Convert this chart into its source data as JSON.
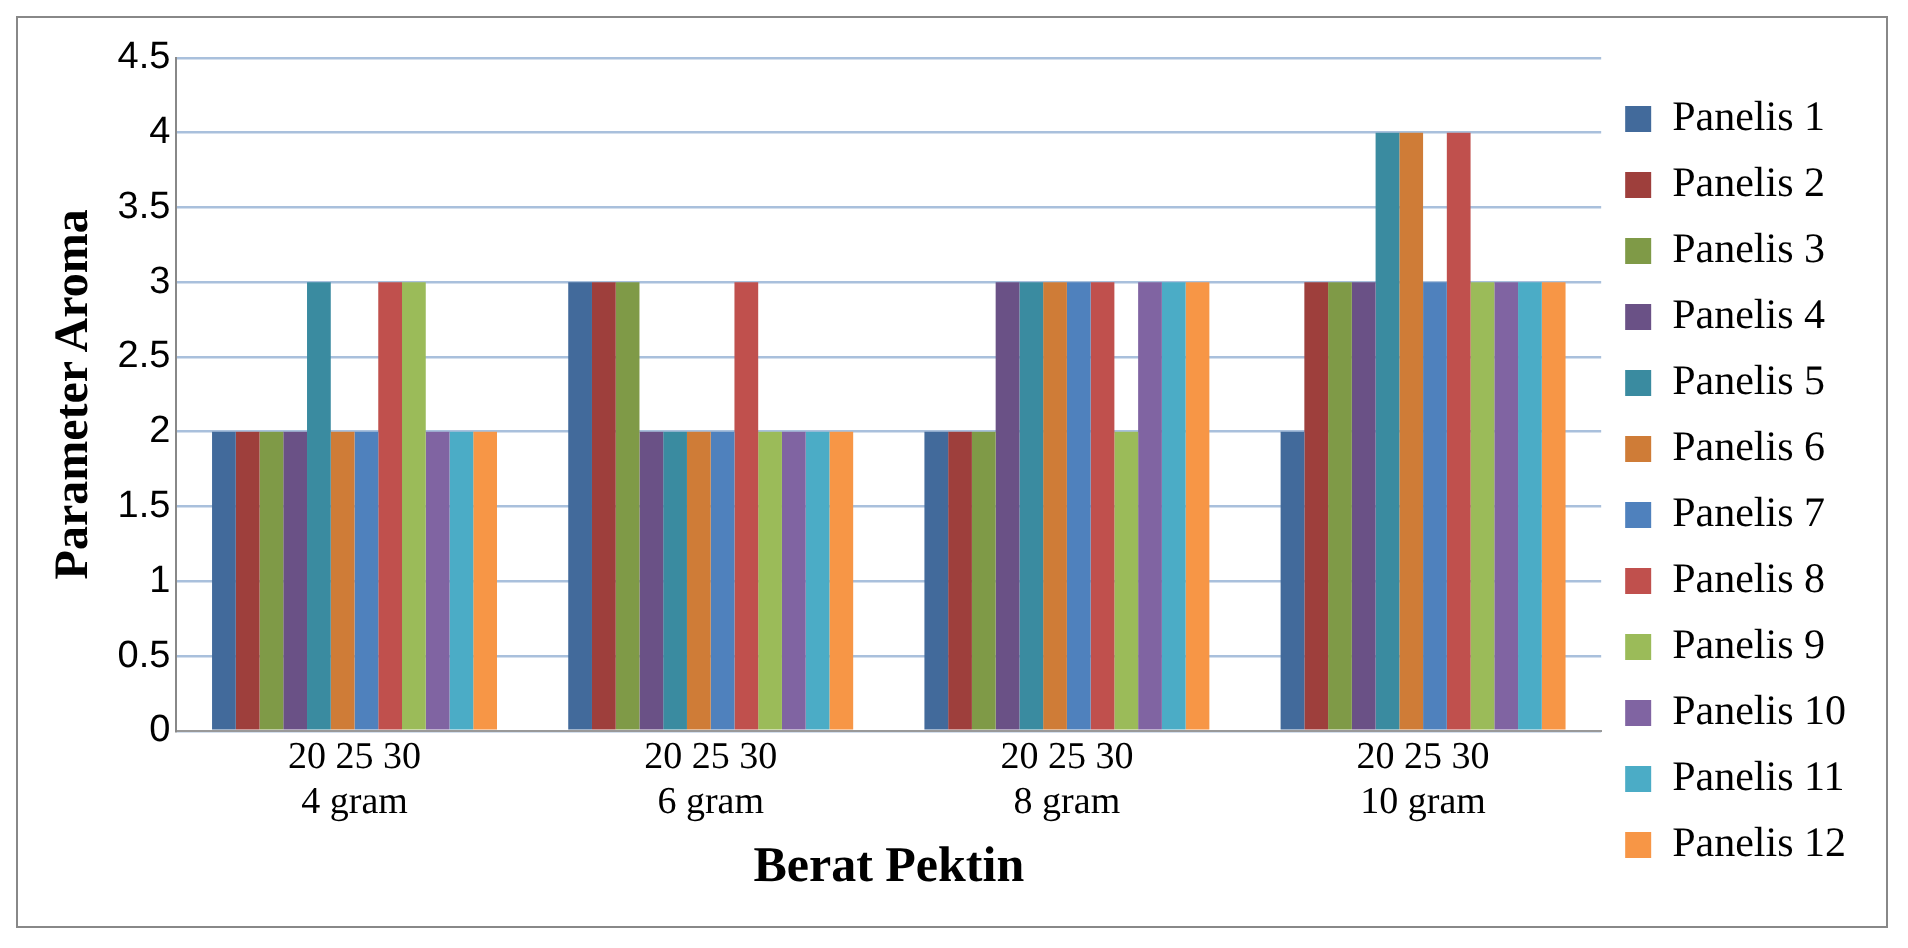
{
  "chart_data": {
    "type": "bar",
    "xlabel": "Berat Pektin",
    "ylabel": "Parameter Aroma",
    "categories": [
      "20 25 30\n4 gram",
      "20 25 30\n6 gram",
      "20 25 30\n8 gram",
      "20 25 30\n10 gram"
    ],
    "series": [
      {
        "name": "Panelis 1",
        "color": "#426a9b",
        "values": [
          2,
          3,
          2,
          2
        ]
      },
      {
        "name": "Panelis 2",
        "color": "#9e3f3c",
        "values": [
          2,
          3,
          2,
          3
        ]
      },
      {
        "name": "Panelis 3",
        "color": "#7f9a47",
        "values": [
          2,
          3,
          2,
          3
        ]
      },
      {
        "name": "Panelis 4",
        "color": "#6a5186",
        "values": [
          2,
          2,
          3,
          3
        ]
      },
      {
        "name": "Panelis 5",
        "color": "#3a8ba0",
        "values": [
          3,
          2,
          3,
          4
        ]
      },
      {
        "name": "Panelis 6",
        "color": "#cf7c37",
        "values": [
          2,
          2,
          3,
          4
        ]
      },
      {
        "name": "Panelis 7",
        "color": "#4f81bd",
        "values": [
          2,
          2,
          3,
          3
        ]
      },
      {
        "name": "Panelis 8",
        "color": "#c0504d",
        "values": [
          3,
          3,
          3,
          4
        ]
      },
      {
        "name": "Panelis 9",
        "color": "#9bbb59",
        "values": [
          3,
          2,
          2,
          3
        ]
      },
      {
        "name": "Panelis 10",
        "color": "#8064a2",
        "values": [
          2,
          2,
          3,
          3
        ]
      },
      {
        "name": "Panelis 11",
        "color": "#4bacc6",
        "values": [
          2,
          2,
          3,
          3
        ]
      },
      {
        "name": "Panelis 12",
        "color": "#f79646",
        "values": [
          2,
          2,
          3,
          3
        ]
      }
    ],
    "ylim": [
      0,
      4.5
    ],
    "yticks": [
      0,
      0.5,
      1,
      1.5,
      2,
      2.5,
      3,
      3.5,
      4,
      4.5
    ],
    "grid": "y",
    "legend": "right"
  }
}
